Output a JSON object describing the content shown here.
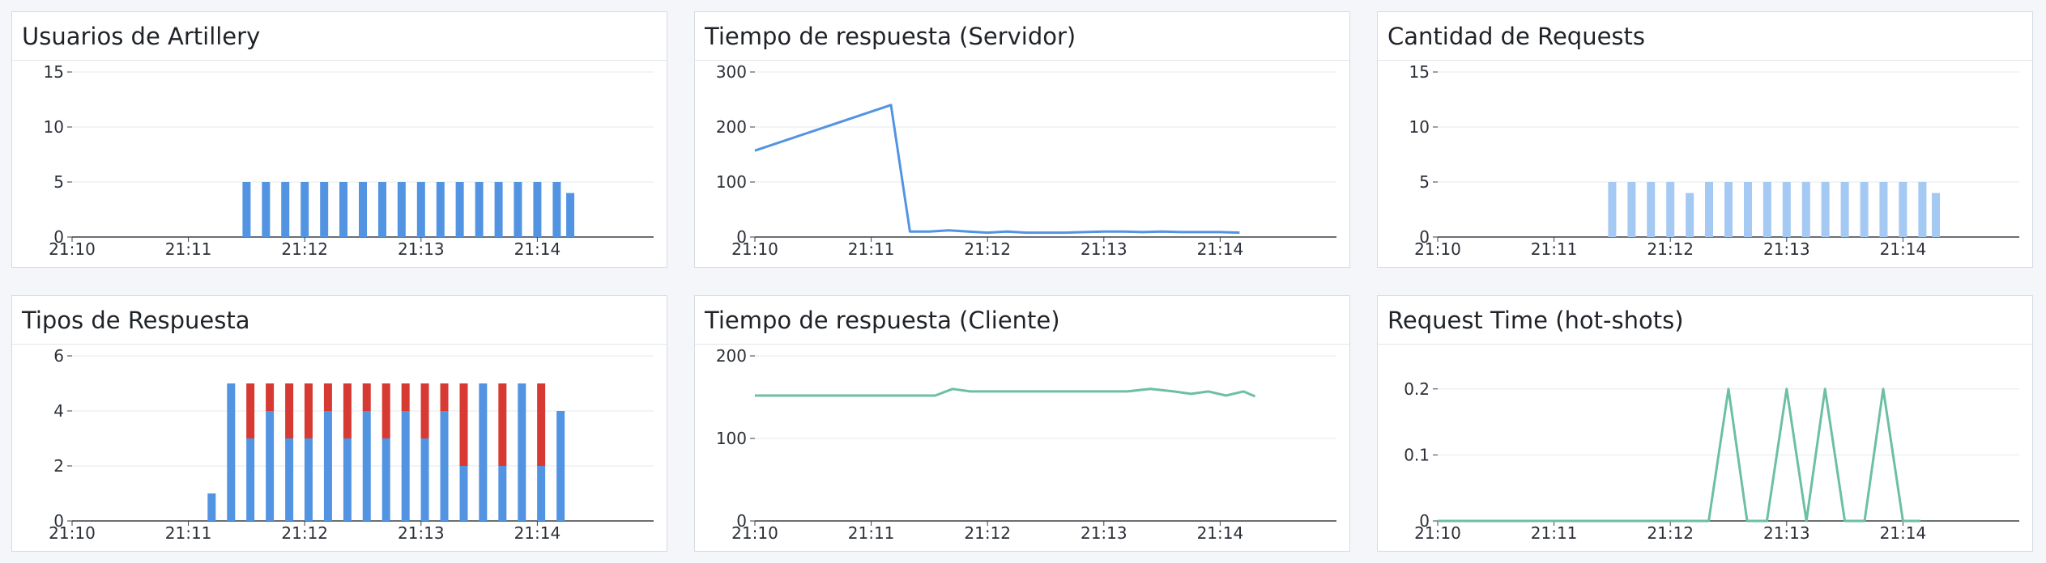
{
  "colors": {
    "blue": "#5294e2",
    "red": "#d73a32",
    "light_blue": "#a4c9f2",
    "green": "#6cc0a1",
    "grid": "#e6e8eb",
    "axis": "#3a3f45"
  },
  "panels": [
    {
      "title": "Usuarios de Artillery"
    },
    {
      "title": "Tiempo de respuesta (Servidor)"
    },
    {
      "title": "Cantidad de Requests"
    },
    {
      "title": "Tipos de Respuesta"
    },
    {
      "title": "Tiempo de respuesta (Cliente)"
    },
    {
      "title": "Request Time (hot-shots)"
    }
  ],
  "chart_data": [
    {
      "type": "bar",
      "title": "Usuarios de Artillery",
      "x_ticks": [
        "21:10",
        "21:11",
        "21:12",
        "21:13",
        "21:14"
      ],
      "y_ticks": [
        "0",
        "5",
        "10",
        "15"
      ],
      "ylim": [
        0,
        15
      ],
      "x_range_min": [
        0,
        5
      ],
      "grid": true,
      "bar_color": "blue",
      "series": [
        {
          "values": [
            {
              "x": 1.5,
              "y": 5
            },
            {
              "x": 1.667,
              "y": 5
            },
            {
              "x": 1.833,
              "y": 5
            },
            {
              "x": 2.0,
              "y": 5
            },
            {
              "x": 2.167,
              "y": 5
            },
            {
              "x": 2.333,
              "y": 5
            },
            {
              "x": 2.5,
              "y": 5
            },
            {
              "x": 2.667,
              "y": 5
            },
            {
              "x": 2.833,
              "y": 5
            },
            {
              "x": 3.0,
              "y": 5
            },
            {
              "x": 3.167,
              "y": 5
            },
            {
              "x": 3.333,
              "y": 5
            },
            {
              "x": 3.5,
              "y": 5
            },
            {
              "x": 3.667,
              "y": 5
            },
            {
              "x": 3.833,
              "y": 5
            },
            {
              "x": 4.0,
              "y": 5
            },
            {
              "x": 4.167,
              "y": 5
            },
            {
              "x": 4.283,
              "y": 4
            }
          ]
        }
      ]
    },
    {
      "type": "line",
      "title": "Tiempo de respuesta (Servidor)",
      "x_ticks": [
        "21:10",
        "21:11",
        "21:12",
        "21:13",
        "21:14"
      ],
      "y_ticks": [
        "0",
        "100",
        "200",
        "300"
      ],
      "ylim": [
        0,
        300
      ],
      "x_range_min": [
        0,
        5
      ],
      "grid": true,
      "line_color": "blue",
      "series": [
        {
          "points": [
            [
              0.0,
              157
            ],
            [
              1.17,
              240
            ],
            [
              1.333,
              10
            ],
            [
              1.5,
              10
            ],
            [
              1.667,
              12
            ],
            [
              1.833,
              10
            ],
            [
              2.0,
              8
            ],
            [
              2.167,
              10
            ],
            [
              2.333,
              8
            ],
            [
              2.5,
              8
            ],
            [
              2.667,
              8
            ],
            [
              2.833,
              9
            ],
            [
              3.0,
              10
            ],
            [
              3.167,
              10
            ],
            [
              3.333,
              9
            ],
            [
              3.5,
              10
            ],
            [
              3.667,
              9
            ],
            [
              3.833,
              9
            ],
            [
              4.0,
              9
            ],
            [
              4.167,
              8
            ]
          ]
        }
      ]
    },
    {
      "type": "bar",
      "title": "Cantidad de Requests",
      "x_ticks": [
        "21:10",
        "21:11",
        "21:12",
        "21:13",
        "21:14"
      ],
      "y_ticks": [
        "0",
        "5",
        "10",
        "15"
      ],
      "ylim": [
        0,
        15
      ],
      "x_range_min": [
        0,
        5
      ],
      "grid": true,
      "bar_color": "light_blue",
      "series": [
        {
          "values": [
            {
              "x": 1.5,
              "y": 5
            },
            {
              "x": 1.667,
              "y": 5
            },
            {
              "x": 1.833,
              "y": 5
            },
            {
              "x": 2.0,
              "y": 5
            },
            {
              "x": 2.167,
              "y": 4
            },
            {
              "x": 2.333,
              "y": 5
            },
            {
              "x": 2.5,
              "y": 5
            },
            {
              "x": 2.667,
              "y": 5
            },
            {
              "x": 2.833,
              "y": 5
            },
            {
              "x": 3.0,
              "y": 5
            },
            {
              "x": 3.167,
              "y": 5
            },
            {
              "x": 3.333,
              "y": 5
            },
            {
              "x": 3.5,
              "y": 5
            },
            {
              "x": 3.667,
              "y": 5
            },
            {
              "x": 3.833,
              "y": 5
            },
            {
              "x": 4.0,
              "y": 5
            },
            {
              "x": 4.167,
              "y": 5
            },
            {
              "x": 4.283,
              "y": 4
            }
          ]
        }
      ]
    },
    {
      "type": "bar",
      "title": "Tipos de Respuesta",
      "stacked": true,
      "x_ticks": [
        "21:10",
        "21:11",
        "21:12",
        "21:13",
        "21:14"
      ],
      "y_ticks": [
        "0",
        "2",
        "4",
        "6"
      ],
      "ylim": [
        0,
        6
      ],
      "x_range_min": [
        0,
        5
      ],
      "grid": true,
      "stack_colors": [
        "blue",
        "red"
      ],
      "series": [
        {
          "values": [
            {
              "x": 1.2,
              "y": [
                1,
                0
              ]
            },
            {
              "x": 1.367,
              "y": [
                5,
                0
              ]
            },
            {
              "x": 1.533,
              "y": [
                3,
                2
              ]
            },
            {
              "x": 1.7,
              "y": [
                4,
                1
              ]
            },
            {
              "x": 1.867,
              "y": [
                3,
                2
              ]
            },
            {
              "x": 2.033,
              "y": [
                3,
                2
              ]
            },
            {
              "x": 2.2,
              "y": [
                4,
                1
              ]
            },
            {
              "x": 2.367,
              "y": [
                3,
                2
              ]
            },
            {
              "x": 2.533,
              "y": [
                4,
                1
              ]
            },
            {
              "x": 2.7,
              "y": [
                3,
                2
              ]
            },
            {
              "x": 2.867,
              "y": [
                4,
                1
              ]
            },
            {
              "x": 3.033,
              "y": [
                3,
                2
              ]
            },
            {
              "x": 3.2,
              "y": [
                4,
                1
              ]
            },
            {
              "x": 3.367,
              "y": [
                2,
                3
              ]
            },
            {
              "x": 3.533,
              "y": [
                5,
                0
              ]
            },
            {
              "x": 3.7,
              "y": [
                2,
                3
              ]
            },
            {
              "x": 3.867,
              "y": [
                5,
                0
              ]
            },
            {
              "x": 4.033,
              "y": [
                2,
                3
              ]
            },
            {
              "x": 4.2,
              "y": [
                4,
                0
              ]
            }
          ]
        }
      ]
    },
    {
      "type": "line",
      "title": "Tiempo de respuesta (Cliente)",
      "x_ticks": [
        "21:10",
        "21:11",
        "21:12",
        "21:13",
        "21:14"
      ],
      "y_ticks": [
        "0",
        "100",
        "200"
      ],
      "ylim": [
        0,
        200
      ],
      "x_range_min": [
        0,
        5
      ],
      "grid": true,
      "line_color": "green",
      "series": [
        {
          "points": [
            [
              0.0,
              152
            ],
            [
              0.5,
              152
            ],
            [
              1.0,
              152
            ],
            [
              1.5,
              152
            ],
            [
              1.55,
              152
            ],
            [
              1.7,
              160
            ],
            [
              1.85,
              157
            ],
            [
              2.0,
              157
            ],
            [
              2.5,
              157
            ],
            [
              3.0,
              157
            ],
            [
              3.2,
              157
            ],
            [
              3.4,
              160
            ],
            [
              3.6,
              157
            ],
            [
              3.75,
              154
            ],
            [
              3.9,
              157
            ],
            [
              4.05,
              152
            ],
            [
              4.2,
              157
            ],
            [
              4.3,
              151
            ]
          ]
        }
      ]
    },
    {
      "type": "line",
      "title": "Request Time (hot-shots)",
      "x_ticks": [
        "21:10",
        "21:11",
        "21:12",
        "21:13",
        "21:14"
      ],
      "y_ticks": [
        "0",
        "0.1",
        "0.2"
      ],
      "ylim": [
        0,
        0.25
      ],
      "x_range_min": [
        0,
        5
      ],
      "grid": true,
      "line_color": "green",
      "series": [
        {
          "points": [
            [
              0.0,
              0
            ],
            [
              2.33,
              0
            ],
            [
              2.5,
              0.2
            ],
            [
              2.66,
              0
            ],
            [
              2.83,
              0
            ],
            [
              3.0,
              0.2
            ],
            [
              3.17,
              0
            ],
            [
              3.33,
              0.2
            ],
            [
              3.5,
              0
            ],
            [
              3.67,
              0
            ],
            [
              3.83,
              0.2
            ],
            [
              4.0,
              0
            ],
            [
              4.15,
              0
            ]
          ]
        }
      ]
    }
  ]
}
